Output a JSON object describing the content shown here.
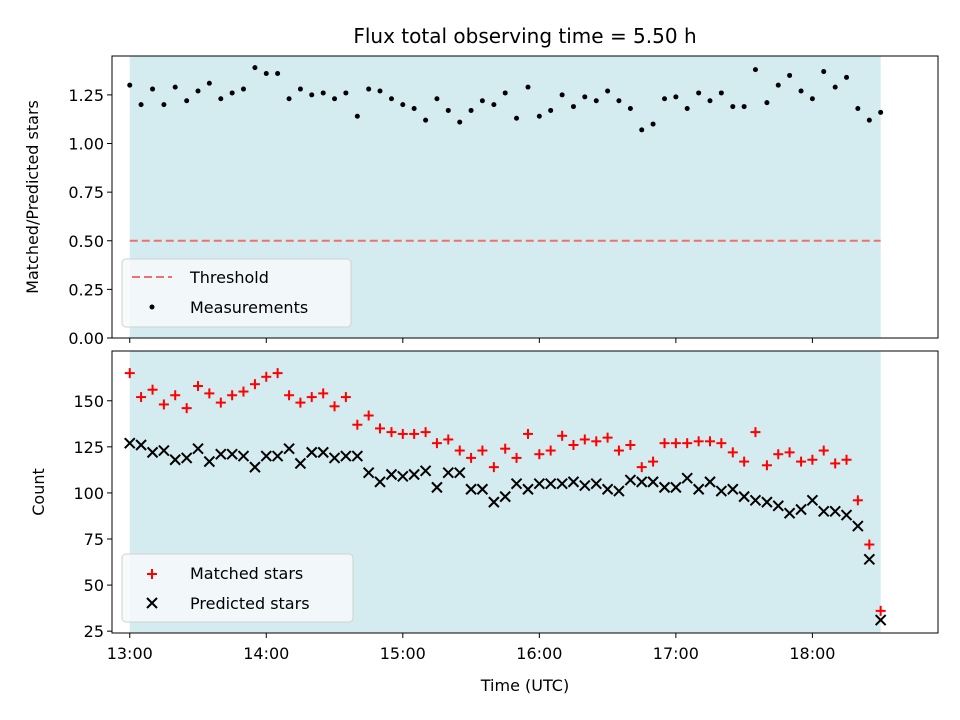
{
  "chart_data": [
    {
      "id": "top",
      "type": "scatter",
      "title": "Flux total observing time = 5.50 h",
      "xlabel": "",
      "ylabel": "Matched/Predicted stars",
      "xlim": [
        -0.13,
        5.92
      ],
      "ylim": [
        0,
        1.45
      ],
      "yticks": [
        0.0,
        0.25,
        0.5,
        0.75,
        1.0,
        1.25
      ],
      "ytick_labels": [
        "0.00",
        "0.25",
        "0.50",
        "0.75",
        "1.00",
        "1.25"
      ],
      "xticks": [
        0,
        1,
        2,
        3,
        4,
        5
      ],
      "observing_span": [
        0.0,
        5.5
      ],
      "span_color": "#d4ebf0",
      "legend_position": "lower left",
      "threshold": {
        "name": "Threshold",
        "value": 0.5,
        "color": "#f07070"
      },
      "series": [
        {
          "name": "Measurements",
          "color": "#000000",
          "marker": "dot",
          "x": [
            0.0,
            0.083,
            0.167,
            0.25,
            0.333,
            0.417,
            0.5,
            0.583,
            0.667,
            0.75,
            0.833,
            0.917,
            1.0,
            1.083,
            1.167,
            1.25,
            1.333,
            1.417,
            1.5,
            1.583,
            1.667,
            1.75,
            1.833,
            1.917,
            2.0,
            2.083,
            2.167,
            2.25,
            2.333,
            2.417,
            2.5,
            2.583,
            2.667,
            2.75,
            2.833,
            2.917,
            3.0,
            3.083,
            3.167,
            3.25,
            3.333,
            3.417,
            3.5,
            3.583,
            3.667,
            3.75,
            3.833,
            3.917,
            4.0,
            4.083,
            4.167,
            4.25,
            4.333,
            4.417,
            4.5,
            4.583,
            4.667,
            4.75,
            4.833,
            4.917,
            5.0,
            5.083,
            5.167,
            5.25,
            5.333,
            5.417,
            5.5
          ],
          "y": [
            1.3,
            1.2,
            1.28,
            1.2,
            1.29,
            1.22,
            1.27,
            1.31,
            1.23,
            1.26,
            1.28,
            1.39,
            1.36,
            1.36,
            1.23,
            1.28,
            1.25,
            1.26,
            1.23,
            1.26,
            1.14,
            1.28,
            1.27,
            1.23,
            1.2,
            1.18,
            1.12,
            1.23,
            1.17,
            1.11,
            1.17,
            1.22,
            1.2,
            1.26,
            1.13,
            1.29,
            1.14,
            1.17,
            1.25,
            1.19,
            1.24,
            1.22,
            1.27,
            1.22,
            1.18,
            1.07,
            1.1,
            1.23,
            1.24,
            1.18,
            1.26,
            1.22,
            1.26,
            1.19,
            1.19,
            1.38,
            1.21,
            1.3,
            1.35,
            1.27,
            1.23,
            1.37,
            1.29,
            1.34,
            1.18,
            1.12,
            1.16
          ]
        }
      ]
    },
    {
      "id": "bottom",
      "type": "scatter",
      "title": "",
      "xlabel": "Time (UTC)",
      "ylabel": "Count",
      "xlim": [
        -0.13,
        5.92
      ],
      "ylim": [
        24,
        177
      ],
      "yticks": [
        25,
        50,
        75,
        100,
        125,
        150
      ],
      "ytick_labels": [
        "25",
        "50",
        "75",
        "100",
        "125",
        "150"
      ],
      "xticks": [
        0,
        1,
        2,
        3,
        4,
        5
      ],
      "xtick_labels": [
        "13:00",
        "14:00",
        "15:00",
        "16:00",
        "17:00",
        "18:00"
      ],
      "observing_span": [
        0.0,
        5.5
      ],
      "span_color": "#d4ebf0",
      "legend_position": "lower left",
      "series": [
        {
          "name": "Matched stars",
          "color": "#ff0000",
          "marker": "plus",
          "x": [
            0.0,
            0.083,
            0.167,
            0.25,
            0.333,
            0.417,
            0.5,
            0.583,
            0.667,
            0.75,
            0.833,
            0.917,
            1.0,
            1.083,
            1.167,
            1.25,
            1.333,
            1.417,
            1.5,
            1.583,
            1.667,
            1.75,
            1.833,
            1.917,
            2.0,
            2.083,
            2.167,
            2.25,
            2.333,
            2.417,
            2.5,
            2.583,
            2.667,
            2.75,
            2.833,
            2.917,
            3.0,
            3.083,
            3.167,
            3.25,
            3.333,
            3.417,
            3.5,
            3.583,
            3.667,
            3.75,
            3.833,
            3.917,
            4.0,
            4.083,
            4.167,
            4.25,
            4.333,
            4.417,
            4.5,
            4.583,
            4.667,
            4.75,
            4.833,
            4.917,
            5.0,
            5.083,
            5.167,
            5.25,
            5.333,
            5.417,
            5.5
          ],
          "y": [
            165,
            152,
            156,
            148,
            153,
            146,
            158,
            154,
            149,
            153,
            155,
            159,
            163,
            165,
            153,
            149,
            152,
            154,
            147,
            152,
            137,
            142,
            135,
            133,
            132,
            132,
            133,
            127,
            129,
            123,
            119,
            123,
            114,
            124,
            119,
            132,
            121,
            123,
            131,
            126,
            129,
            128,
            130,
            123,
            126,
            114,
            117,
            127,
            127,
            127,
            128,
            128,
            127,
            122,
            117,
            133,
            115,
            121,
            122,
            117,
            118,
            123,
            116,
            118,
            96,
            72,
            36
          ]
        },
        {
          "name": "Predicted stars",
          "color": "#000000",
          "marker": "x",
          "x": [
            0.0,
            0.083,
            0.167,
            0.25,
            0.333,
            0.417,
            0.5,
            0.583,
            0.667,
            0.75,
            0.833,
            0.917,
            1.0,
            1.083,
            1.167,
            1.25,
            1.333,
            1.417,
            1.5,
            1.583,
            1.667,
            1.75,
            1.833,
            1.917,
            2.0,
            2.083,
            2.167,
            2.25,
            2.333,
            2.417,
            2.5,
            2.583,
            2.667,
            2.75,
            2.833,
            2.917,
            3.0,
            3.083,
            3.167,
            3.25,
            3.333,
            3.417,
            3.5,
            3.583,
            3.667,
            3.75,
            3.833,
            3.917,
            4.0,
            4.083,
            4.167,
            4.25,
            4.333,
            4.417,
            4.5,
            4.583,
            4.667,
            4.75,
            4.833,
            4.917,
            5.0,
            5.083,
            5.167,
            5.25,
            5.333,
            5.417,
            5.5
          ],
          "y": [
            127,
            126,
            122,
            123,
            118,
            119,
            124,
            117,
            121,
            121,
            120,
            114,
            120,
            120,
            124,
            116,
            122,
            122,
            119,
            120,
            120,
            111,
            106,
            110,
            109,
            110,
            112,
            103,
            111,
            111,
            102,
            102,
            95,
            98,
            105,
            102,
            105,
            105,
            105,
            106,
            104,
            105,
            102,
            101,
            107,
            106,
            106,
            103,
            103,
            108,
            102,
            106,
            101,
            102,
            98,
            96,
            95,
            93,
            89,
            91,
            96,
            90,
            90,
            88,
            82,
            64,
            31
          ]
        }
      ]
    }
  ]
}
